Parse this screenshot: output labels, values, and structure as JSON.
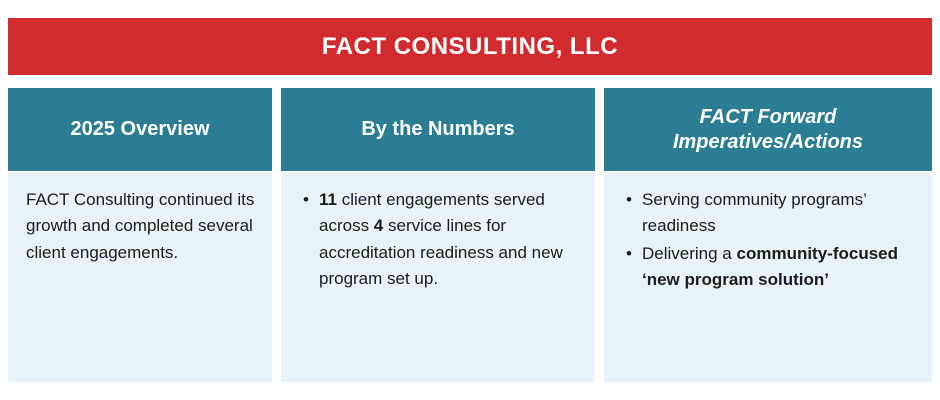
{
  "banner": {
    "title": "FACT CONSULTING, LLC"
  },
  "colors": {
    "banner_bg": "#d12a2f",
    "banner_text": "#ffffff",
    "header_bg": "#2b7d94",
    "header_text": "#ffffff",
    "body_bg": "#e7f3f8",
    "body_text": "#1c1c1c"
  },
  "columns": [
    {
      "header": "2025 Overview",
      "body_type": "paragraph",
      "paragraph": "FACT Consulting continued its growth and completed several client engagements."
    },
    {
      "header": "By the Numbers",
      "body_type": "bullets",
      "bullets": [
        {
          "segments": [
            {
              "text": "11",
              "bold": true
            },
            {
              "text": " client engagements served across ",
              "bold": false
            },
            {
              "text": "4",
              "bold": true
            },
            {
              "text": " service lines for accreditation readiness and new program set up.",
              "bold": false
            }
          ]
        }
      ]
    },
    {
      "header": "FACT Forward Imperatives/Actions",
      "header_italic": true,
      "body_type": "bullets",
      "bullets": [
        {
          "segments": [
            {
              "text": "Serving community programs’ readiness",
              "bold": false
            }
          ]
        },
        {
          "segments": [
            {
              "text": "Delivering a ",
              "bold": false
            },
            {
              "text": "community-focused ‘new program solution’",
              "bold": true
            }
          ]
        }
      ]
    }
  ]
}
